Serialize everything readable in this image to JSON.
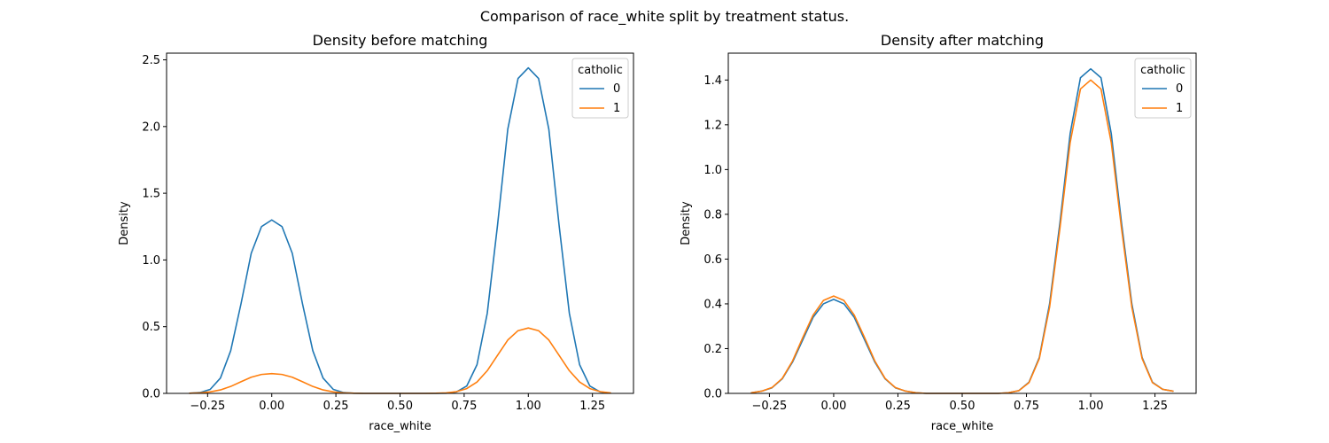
{
  "figure": {
    "suptitle": "Comparison of race_white split by treatment status."
  },
  "chart_data": [
    {
      "type": "line",
      "title": "Density before matching",
      "xlabel": "race_white",
      "ylabel": "Density",
      "xlim": [
        -0.41,
        1.41
      ],
      "ylim": [
        0,
        2.55
      ],
      "xticks": [
        -0.25,
        0.0,
        0.25,
        0.5,
        0.75,
        1.0,
        1.25
      ],
      "xticklabels": [
        "−0.25",
        "0.00",
        "0.25",
        "0.50",
        "0.75",
        "1.00",
        "1.25"
      ],
      "yticks": [
        0,
        0.5,
        1.0,
        1.5,
        2.0,
        2.5
      ],
      "yticklabels": [
        "0.0",
        "0.5",
        "1.0",
        "1.5",
        "2.0",
        "2.5"
      ],
      "legend": {
        "title": "catholic",
        "position": "top-right"
      },
      "grid": false,
      "series": [
        {
          "name": "0",
          "color": "#1f77b4",
          "x": [
            -0.32,
            -0.28,
            -0.24,
            -0.2,
            -0.16,
            -0.12,
            -0.08,
            -0.04,
            0.0,
            0.04,
            0.08,
            0.12,
            0.16,
            0.2,
            0.24,
            0.28,
            0.32,
            0.36,
            0.4,
            0.44,
            0.48,
            0.52,
            0.56,
            0.6,
            0.64,
            0.68,
            0.72,
            0.76,
            0.8,
            0.84,
            0.88,
            0.92,
            0.96,
            1.0,
            1.04,
            1.08,
            1.12,
            1.16,
            1.2,
            1.24,
            1.28,
            1.32
          ],
          "y": [
            0.001,
            0.006,
            0.03,
            0.115,
            0.32,
            0.67,
            1.05,
            1.25,
            1.3,
            1.25,
            1.05,
            0.67,
            0.32,
            0.115,
            0.03,
            0.006,
            0.001,
            0.0,
            0.0,
            0.0,
            0.0,
            0.0,
            0.0,
            0.0,
            0.0,
            0.001,
            0.011,
            0.055,
            0.215,
            0.6,
            1.26,
            1.98,
            2.36,
            2.44,
            2.36,
            1.98,
            1.26,
            0.6,
            0.215,
            0.055,
            0.011,
            0.002
          ]
        },
        {
          "name": "1",
          "color": "#ff7f0e",
          "x": [
            -0.32,
            -0.28,
            -0.24,
            -0.2,
            -0.16,
            -0.12,
            -0.08,
            -0.04,
            0.0,
            0.04,
            0.08,
            0.12,
            0.16,
            0.2,
            0.24,
            0.28,
            0.32,
            0.36,
            0.4,
            0.44,
            0.48,
            0.52,
            0.56,
            0.6,
            0.64,
            0.68,
            0.72,
            0.76,
            0.8,
            0.84,
            0.88,
            0.92,
            0.96,
            1.0,
            1.04,
            1.08,
            1.12,
            1.16,
            1.2,
            1.24,
            1.28,
            1.32
          ],
          "y": [
            0.001,
            0.004,
            0.011,
            0.026,
            0.052,
            0.087,
            0.121,
            0.142,
            0.148,
            0.142,
            0.121,
            0.087,
            0.052,
            0.026,
            0.011,
            0.004,
            0.001,
            0.0,
            0.0,
            0.0,
            0.0,
            0.0,
            0.0,
            0.0,
            0.001,
            0.004,
            0.013,
            0.036,
            0.085,
            0.17,
            0.285,
            0.4,
            0.47,
            0.49,
            0.47,
            0.4,
            0.285,
            0.17,
            0.085,
            0.036,
            0.013,
            0.004
          ]
        }
      ]
    },
    {
      "type": "line",
      "title": "Density after matching",
      "xlabel": "race_white",
      "ylabel": "Density",
      "xlim": [
        -0.41,
        1.41
      ],
      "ylim": [
        0,
        1.52
      ],
      "xticks": [
        -0.25,
        0.0,
        0.25,
        0.5,
        0.75,
        1.0,
        1.25
      ],
      "xticklabels": [
        "−0.25",
        "0.00",
        "0.25",
        "0.50",
        "0.75",
        "1.00",
        "1.25"
      ],
      "yticks": [
        0,
        0.2,
        0.4,
        0.6,
        0.8,
        1.0,
        1.2,
        1.4
      ],
      "yticklabels": [
        "0.0",
        "0.2",
        "0.4",
        "0.6",
        "0.8",
        "1.0",
        "1.2",
        "1.4"
      ],
      "legend": {
        "title": "catholic",
        "position": "top-right"
      },
      "grid": false,
      "series": [
        {
          "name": "0",
          "color": "#1f77b4",
          "x": [
            -0.32,
            -0.28,
            -0.24,
            -0.2,
            -0.16,
            -0.12,
            -0.08,
            -0.04,
            0.0,
            0.04,
            0.08,
            0.12,
            0.16,
            0.2,
            0.24,
            0.28,
            0.32,
            0.36,
            0.4,
            0.44,
            0.48,
            0.52,
            0.56,
            0.6,
            0.64,
            0.68,
            0.72,
            0.76,
            0.8,
            0.84,
            0.88,
            0.92,
            0.96,
            1.0,
            1.04,
            1.08,
            1.12,
            1.16,
            1.2,
            1.24,
            1.28,
            1.32
          ],
          "y": [
            0.003,
            0.01,
            0.025,
            0.065,
            0.14,
            0.24,
            0.34,
            0.4,
            0.42,
            0.4,
            0.34,
            0.24,
            0.14,
            0.065,
            0.025,
            0.01,
            0.003,
            0.0,
            0.0,
            0.0,
            0.0,
            0.0,
            0.0,
            0.0,
            0.0,
            0.003,
            0.012,
            0.05,
            0.16,
            0.4,
            0.76,
            1.16,
            1.41,
            1.45,
            1.41,
            1.16,
            0.76,
            0.4,
            0.16,
            0.05,
            0.018,
            0.01
          ]
        },
        {
          "name": "1",
          "color": "#ff7f0e",
          "x": [
            -0.32,
            -0.28,
            -0.24,
            -0.2,
            -0.16,
            -0.12,
            -0.08,
            -0.04,
            0.0,
            0.04,
            0.08,
            0.12,
            0.16,
            0.2,
            0.24,
            0.28,
            0.32,
            0.36,
            0.4,
            0.44,
            0.48,
            0.52,
            0.56,
            0.6,
            0.64,
            0.68,
            0.72,
            0.76,
            0.8,
            0.84,
            0.88,
            0.92,
            0.96,
            1.0,
            1.04,
            1.08,
            1.12,
            1.16,
            1.2,
            1.24,
            1.28,
            1.32
          ],
          "y": [
            0.003,
            0.01,
            0.026,
            0.067,
            0.145,
            0.25,
            0.35,
            0.415,
            0.435,
            0.415,
            0.35,
            0.25,
            0.145,
            0.067,
            0.026,
            0.01,
            0.003,
            0.0,
            0.0,
            0.0,
            0.0,
            0.0,
            0.0,
            0.0,
            0.0,
            0.003,
            0.012,
            0.048,
            0.155,
            0.385,
            0.735,
            1.12,
            1.36,
            1.4,
            1.36,
            1.12,
            0.735,
            0.385,
            0.155,
            0.048,
            0.018,
            0.01
          ]
        }
      ]
    }
  ]
}
